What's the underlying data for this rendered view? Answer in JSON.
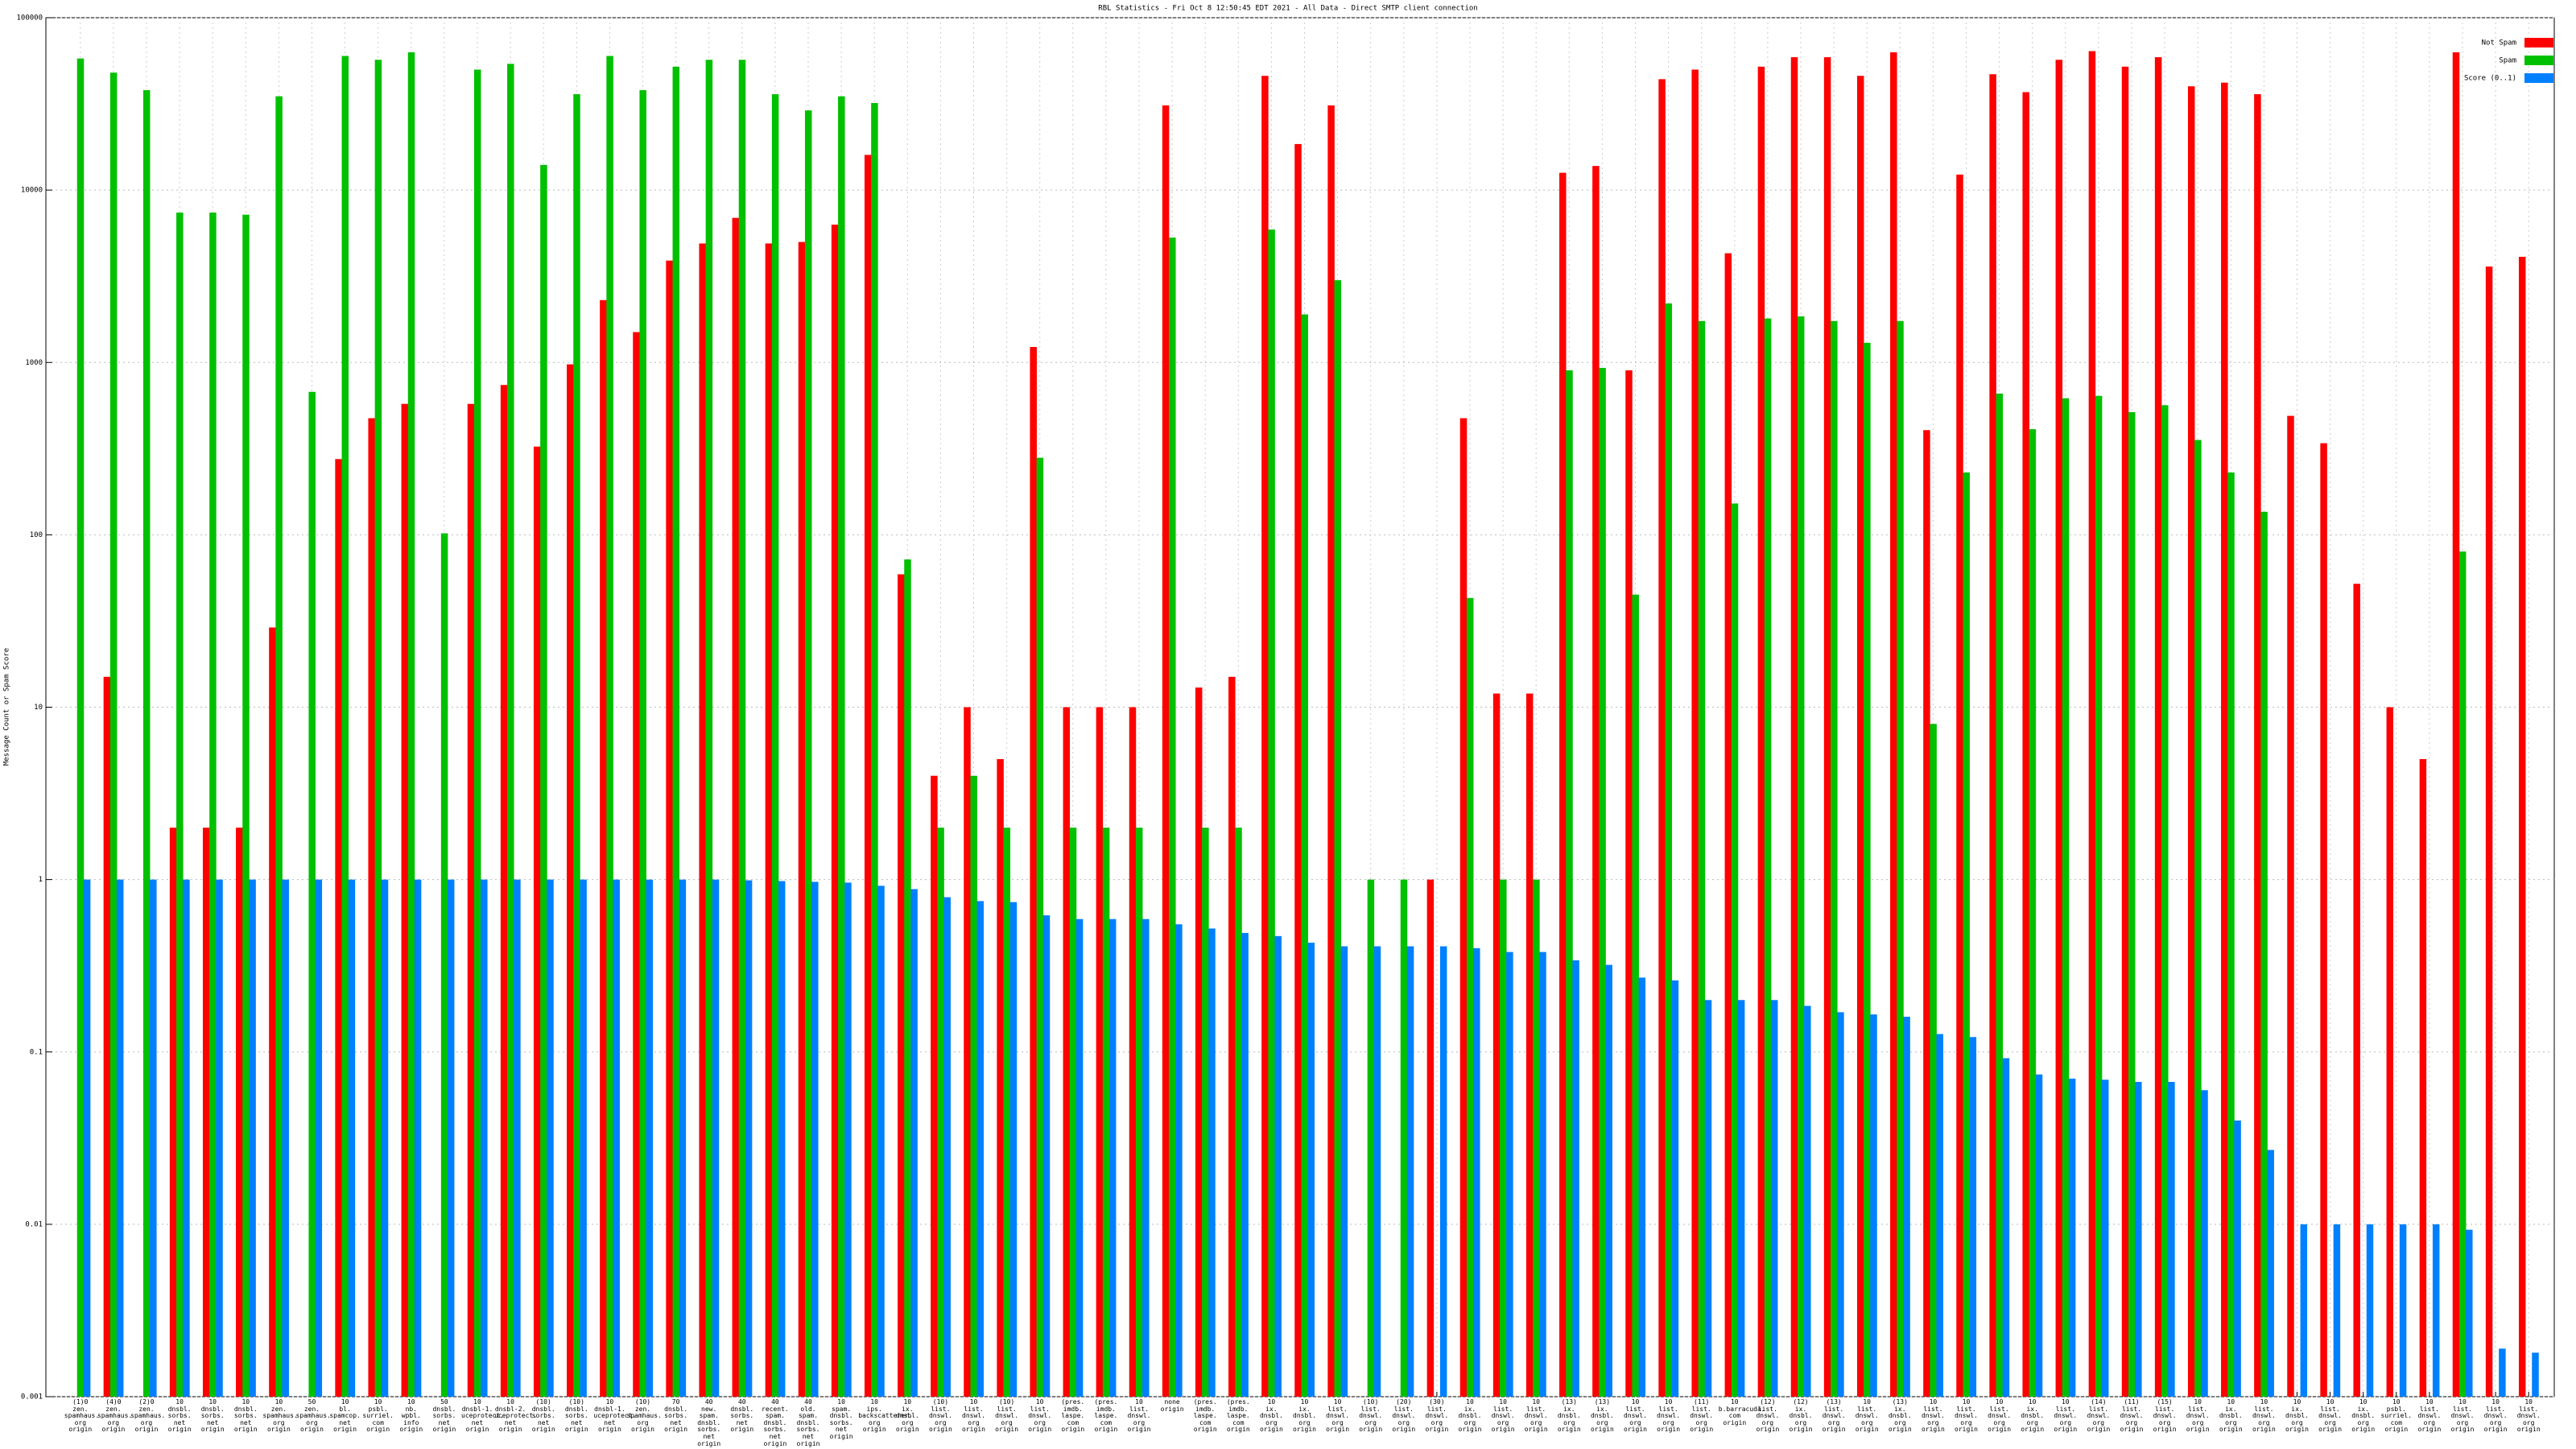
{
  "chart_data": {
    "type": "bar",
    "title": "RBL Statistics - Fri Oct  8 12:50:45 EDT 2021 - All Data - Direct SMTP client connection",
    "ylabel": "Message Count or Spam Score",
    "log_scale": true,
    "grid": true,
    "legend": "top right",
    "ylim": [
      0.001,
      100000
    ],
    "yticks": [
      0.001,
      0.01,
      0.1,
      1,
      10,
      100,
      1000,
      10000,
      100000
    ],
    "categories": [
      "(1)0\nzen.\nspamhaus.\norg\norigin",
      "(4)0\nzen.\nspamhaus.\norg\norigin",
      "(2)0\nzen.\nspamhaus.\norg\norigin",
      "10\ndnsbl.\nsorbs.\nnet\norigin",
      "10\ndnsbl.\nsorbs.\nnet\norigin",
      "10\ndnsbl.\nsorbs.\nnet\norigin",
      "10\nzen.\nspamhaus.\norg\norigin",
      "50\nzen.\nspamhaus.\norg\norigin",
      "10\nbl.\nspamcop.\nnet\norigin",
      "10\npsbl.\nsurriel.\ncom\norigin",
      "10\nnb.\nwpbl.\ninfo\norigin",
      "50\ndnsbl.\nsorbs.\nnet\norigin",
      "10\ndnsbl-1.\nuceprotect.\nnet\norigin",
      "10\ndnsbl-2.\nuceprotect.\nnet\norigin",
      "(10)\ndnsbl.\nsorbs.\nnet\norigin",
      "(10)\ndnsbl.\nsorbs.\nnet\norigin",
      "10\ndnsbl-1.\nuceprotect.\nnet\norigin",
      "(10)\nzen.\nspamhaus.\norg\norigin",
      "70\ndnsbl.\nsorbs.\nnet\norigin",
      "40\nnew.\nspam.\ndnsbl.\nsorbs.\nnet\norigin",
      "40\ndnsbl.\nsorbs.\nnet\norigin",
      "40\nrecent.\nspam.\ndnsbl.\nsorbs.\nnet\norigin",
      "40\nold.\nspam.\ndnsbl.\nsorbs.\nnet\norigin",
      "10\nspam.\ndnsbl.\nsorbs.\nnet\norigin",
      "10\nips.\nbackscatterer.\norg\norigin",
      "10\nix.\ndnsbl.\norg\norigin",
      "(10)\nlist.\ndnswl.\norg\norigin",
      "10\nlist.\ndnswl.\norg\norigin",
      "(10)\nlist.\ndnswl.\norg\norigin",
      "10\nlist.\ndnswl.\norg\norigin",
      "(pres.\nimdb.\nlaspe.\ncom\norigin",
      "(pres.\nimdb.\nlaspe.\ncom\norigin",
      "10\nlist.\ndnswl.\norg\norigin",
      "none\norigin",
      "(pres.\nimdb.\nlaspe.\ncom\norigin",
      "(pres.\nimdb.\nlaspe.\ncom\norigin",
      "10\nix.\ndnsbl.\norg\norigin",
      "10\nix.\ndnsbl.\norg\norigin",
      "10\nlist.\ndnswl.\norg\norigin",
      "(10)\nlist.\ndnswl.\norg\norigin",
      "(20)\nlist.\ndnswl.\norg\norigin",
      "(30)\nlist.\ndnswl.\norg\norigin",
      "10\nix.\ndnsbl.\norg\norigin",
      "10\nlist.\ndnswl.\norg\norigin",
      "10\nlist.\ndnswl.\norg\norigin",
      "(13)\nix.\ndnsbl.\norg\norigin",
      "(13)\nix.\ndnsbl.\norg\norigin",
      "10\nlist.\ndnswl.\norg\norigin",
      "10\nlist.\ndnswl.\norg\norigin",
      "(11)\nlist.\ndnswl.\norg\norigin",
      "10\nb.barracuda.\ncom\norigin",
      "(12)\nlist.\ndnswl.\norg\norigin",
      "(12)\nix.\ndnsbl.\norg\norigin",
      "(13)\nlist.\ndnswl.\norg\norigin",
      "10\nlist.\ndnswl.\norg\norigin",
      "(13)\nix.\ndnsbl.\norg\norigin",
      "10\nlist.\ndnswl.\norg\norigin",
      "10\nlist.\ndnswl.\norg\norigin",
      "10\nlist.\ndnswl.\norg\norigin",
      "10\nix.\ndnsbl.\norg\norigin",
      "10\nlist.\ndnswl.\norg\norigin",
      "(14)\nlist.\ndnswl.\norg\norigin",
      "(11)\nlist.\ndnswl.\norg\norigin",
      "(15)\nlist.\ndnswl.\norg\norigin",
      "10\nlist.\ndnswl.\norg\norigin",
      "10\nix.\ndnsbl.\norg\norigin",
      "10\nlist.\ndnswl.\norg\norigin",
      "10\nix.\ndnsbl.\norg\norigin",
      "10\nlist.\ndnswl.\norg\norigin",
      "10\nix.\ndnsbl.\norg\norigin",
      "10\npsbl.\nsurriel.\ncom\norigin",
      "10\nlist.\ndnswl.\norg\norigin",
      "10\nlist.\ndnswl.\norg\norigin",
      "10\nlist.\ndnswl.\norg\norigin",
      "10\nlist.\ndnswl.\norg\norigin"
    ],
    "series": [
      {
        "name": "Not Spam",
        "color": "#ff0000",
        "values": [
          null,
          15,
          null,
          2,
          2,
          2,
          29,
          null,
          275,
          475,
          575,
          null,
          575,
          740,
          325,
          975,
          2300,
          1500,
          3900,
          4900,
          6900,
          4900,
          5000,
          6300,
          16000,
          59,
          4,
          10,
          5,
          1230,
          10,
          10,
          10,
          31000,
          13,
          15,
          46000,
          18500,
          31000,
          null,
          null,
          1,
          475,
          12,
          12,
          12600,
          13800,
          900,
          44000,
          50000,
          4300,
          52000,
          59000,
          59000,
          46000,
          63000,
          405,
          12300,
          47000,
          37000,
          57000,
          64000,
          52000,
          59000,
          40000,
          42000,
          36000,
          490,
          340,
          52,
          10,
          5,
          63000,
          3600,
          4100
        ]
      },
      {
        "name": "Spam",
        "color": "#00c000",
        "values": [
          58000,
          48000,
          38000,
          7400,
          7400,
          7200,
          35000,
          675,
          60000,
          57000,
          63000,
          102,
          50000,
          54000,
          14000,
          36000,
          60000,
          38000,
          52000,
          57000,
          57000,
          36000,
          29000,
          35000,
          32000,
          72,
          2,
          4,
          2,
          280,
          2,
          2,
          2,
          5300,
          2,
          2,
          5900,
          1900,
          3000,
          1,
          1,
          null,
          43,
          1,
          1,
          900,
          930,
          45,
          2200,
          1740,
          152,
          1800,
          1850,
          1740,
          1300,
          1740,
          8,
          230,
          660,
          410,
          620,
          640,
          515,
          565,
          355,
          230,
          136,
          null,
          null,
          null,
          null,
          null,
          80,
          null,
          null
        ]
      },
      {
        "name": "Score (0..1)",
        "color": "#0080ff",
        "values": [
          1,
          1,
          1,
          1,
          1,
          1,
          1,
          1,
          1,
          1,
          1,
          1,
          1,
          1,
          1,
          1,
          1,
          1,
          1,
          1,
          0.99,
          0.98,
          0.97,
          0.96,
          0.92,
          0.88,
          0.79,
          0.75,
          0.74,
          0.62,
          0.59,
          0.59,
          0.59,
          0.55,
          0.52,
          0.49,
          0.47,
          0.43,
          0.41,
          0.41,
          0.41,
          0.41,
          0.4,
          0.38,
          0.38,
          0.34,
          0.32,
          0.27,
          0.26,
          0.2,
          0.2,
          0.2,
          0.185,
          0.17,
          0.165,
          0.16,
          0.127,
          0.122,
          0.092,
          0.074,
          0.07,
          0.069,
          0.067,
          0.067,
          0.06,
          0.04,
          0.027,
          0.01,
          0.01,
          0.01,
          0.01,
          0.01,
          0.0093,
          0.0019,
          0.0018
        ]
      }
    ]
  }
}
